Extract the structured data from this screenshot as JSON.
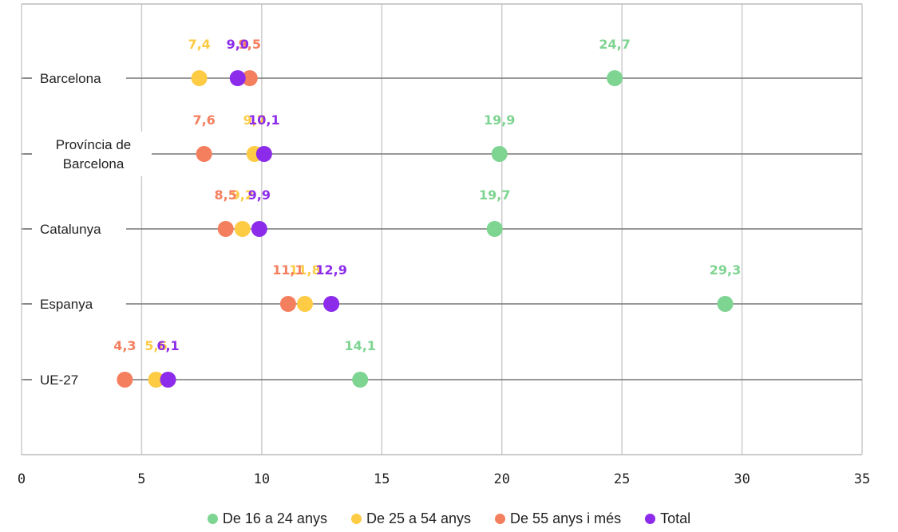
{
  "chart_data": {
    "type": "scatter",
    "title": "",
    "xlabel": "",
    "ylabel": "",
    "xlim": [
      0,
      35
    ],
    "xticks": [
      0,
      5,
      10,
      15,
      20,
      25,
      30,
      35
    ],
    "grid": true,
    "legend_position": "bottom",
    "categories": [
      "Barcelona",
      "Província de Barcelona",
      "Catalunya",
      "Espanya",
      "UE-27"
    ],
    "series": [
      {
        "name": "De 16 a 24 anys",
        "color": "#7ed491",
        "values": [
          24.7,
          19.9,
          19.7,
          29.3,
          14.1
        ],
        "labels": [
          "24,7",
          "19,9",
          "19,7",
          "29,3",
          "14,1"
        ]
      },
      {
        "name": "De 25 a 54 anys",
        "color": "#fecb45",
        "values": [
          7.4,
          9.7,
          9.2,
          11.8,
          5.6
        ],
        "labels": [
          "7,4",
          "9,7",
          "9,2",
          "11,8",
          "5,6"
        ]
      },
      {
        "name": "De 55 anys i més",
        "color": "#f47f5e",
        "values": [
          9.5,
          7.6,
          8.5,
          11.1,
          4.3
        ],
        "labels": [
          "9,5",
          "7,6",
          "8,5",
          "11,1",
          "4,3"
        ]
      },
      {
        "name": "Total",
        "color": "#8c2bea",
        "values": [
          9.0,
          10.1,
          9.9,
          12.9,
          6.1
        ],
        "labels": [
          "9,0",
          "10,1",
          "9,9",
          "12,9",
          "6,1"
        ]
      }
    ]
  }
}
